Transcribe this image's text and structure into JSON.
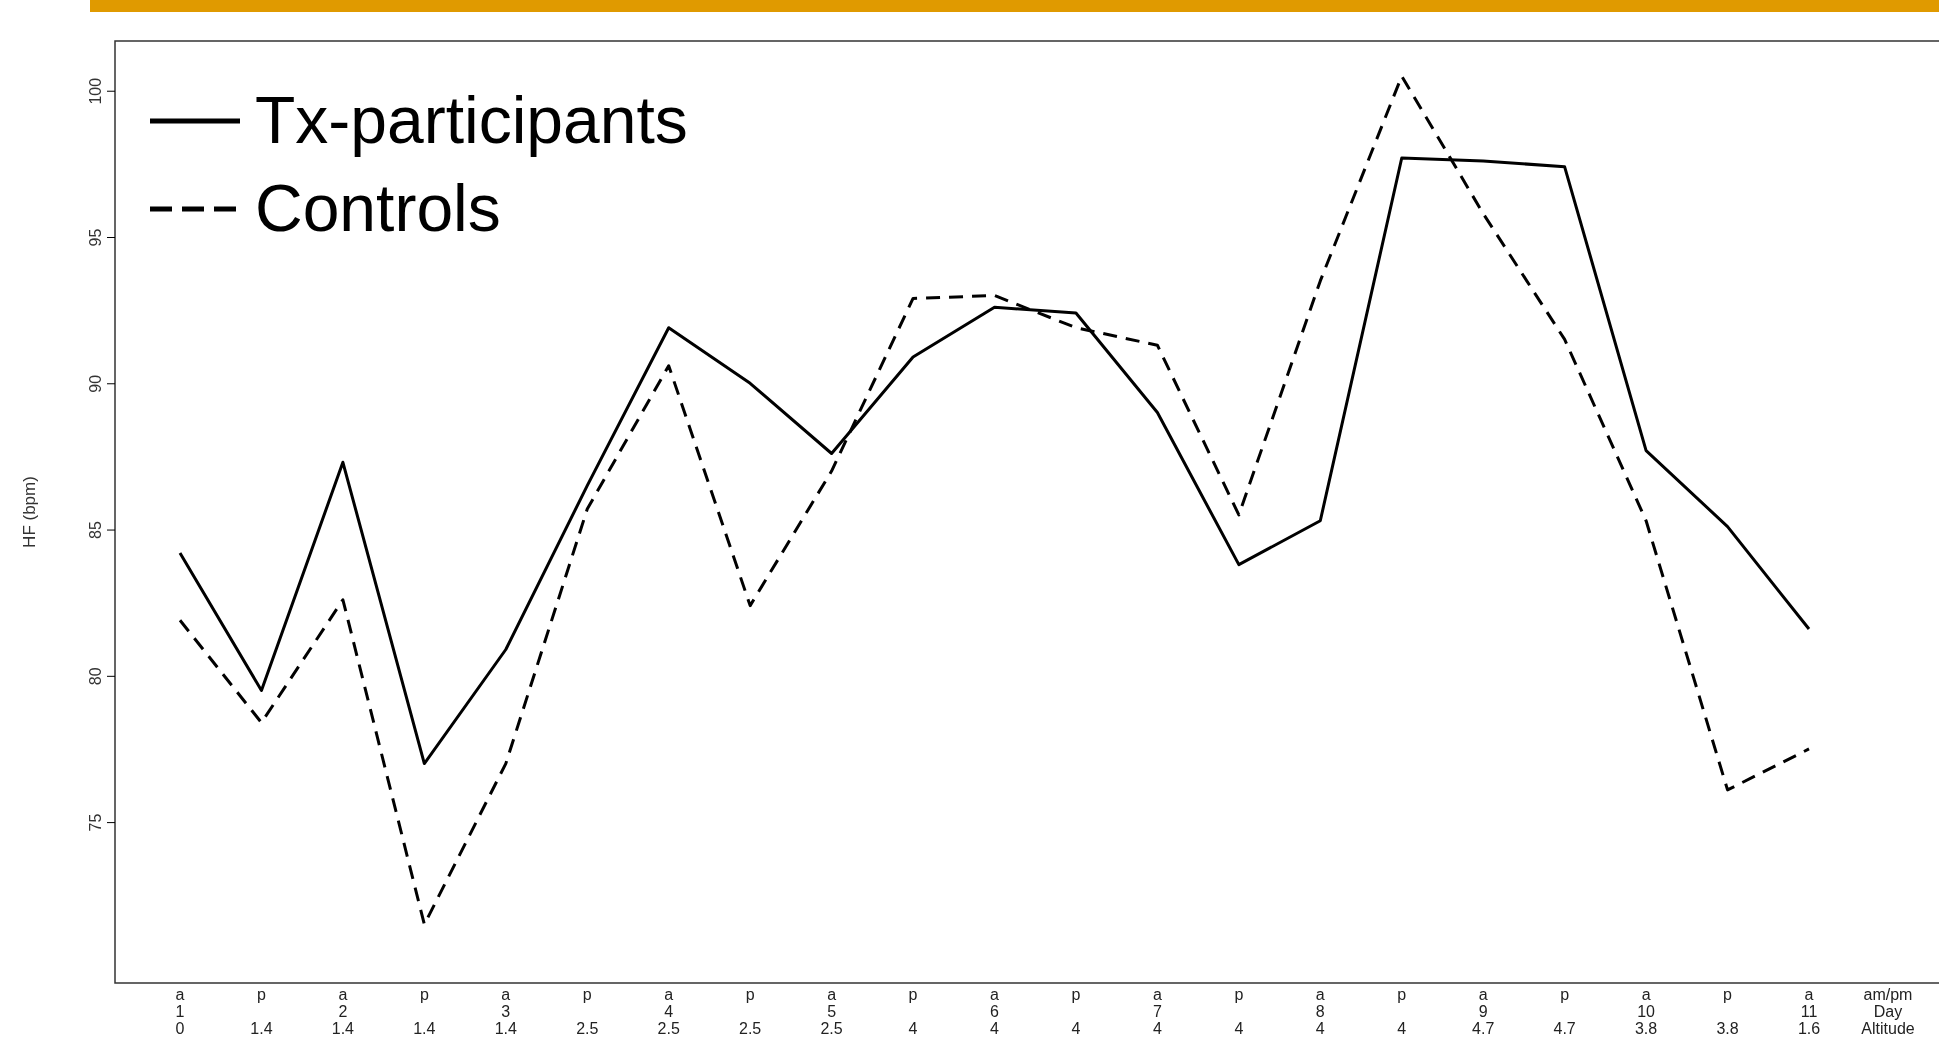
{
  "chart_data": {
    "type": "line",
    "ylabel": "HF (bpm)",
    "xlabel": "am/pm\nDay\nAltitude",
    "categories": [
      "a\n1\n0",
      "p\n\n1.4",
      "a\n2\n1.4",
      "p\n\n1.4",
      "a\n3\n1.4",
      "p\n\n2.5",
      "a\n4\n2.5",
      "p\n\n2.5",
      "a\n5\n2.5",
      "p\n\n4",
      "a\n6\n4",
      "p\n\n4",
      "a\n7\n4",
      "p\n\n4",
      "a\n8\n4",
      "p\n\n4",
      "a\n9\n4.7",
      "p\n\n4.7",
      "a\n10\n3.8",
      "p\n\n3.8",
      "a\n11\n1.6"
    ],
    "series": [
      {
        "name": "Tx-participants",
        "color": "#000000",
        "line_style": "solid",
        "values": [
          84.2,
          79.5,
          87.3,
          77.0,
          80.9,
          86.5,
          91.9,
          90.0,
          87.6,
          90.9,
          92.6,
          92.4,
          89.0,
          83.8,
          85.3,
          97.7,
          97.6,
          97.4,
          87.7,
          85.1,
          81.6
        ]
      },
      {
        "name": "Controls",
        "color": "#000000",
        "line_style": "dashed",
        "values": [
          81.9,
          78.4,
          82.6,
          71.5,
          77.0,
          85.7,
          90.6,
          82.4,
          87.0,
          92.9,
          93.0,
          91.9,
          91.3,
          85.5,
          93.5,
          100.5,
          95.8,
          91.5,
          85.3,
          76.1,
          77.5
        ]
      }
    ],
    "ylim": [
      69.5,
      101.7
    ],
    "yticks": [
      75,
      80,
      85,
      90,
      95,
      100
    ],
    "grid": false,
    "legend": "top left",
    "marker": "none"
  }
}
